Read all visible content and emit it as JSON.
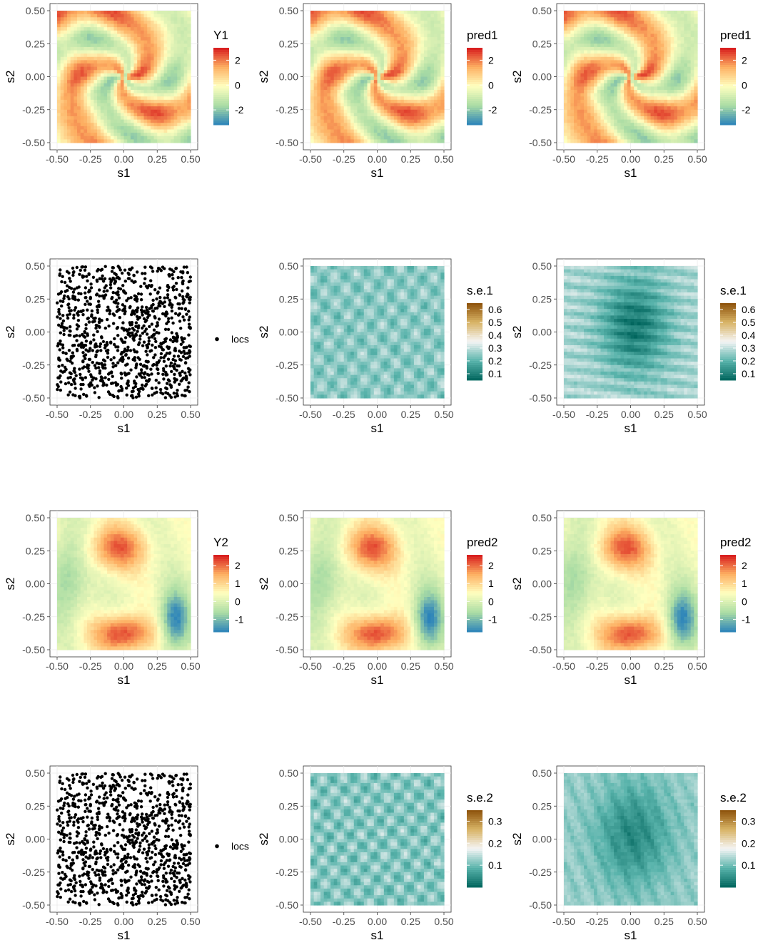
{
  "chart_data": [
    {
      "type": "heatmap",
      "row": 0,
      "col": 0,
      "palette": "spectral",
      "field": "y1",
      "xlabel": "s1",
      "ylabel": "s2",
      "x_ticks": [
        "-0.50",
        "-0.25",
        "0.00",
        "0.25",
        "0.50"
      ],
      "y_ticks": [
        "0.50",
        "0.25",
        "0.00",
        "-0.25",
        "-0.50"
      ],
      "xlim": [
        -0.5,
        0.5
      ],
      "ylim": [
        -0.5,
        0.5
      ],
      "legend": {
        "title": "Y1",
        "labels": [
          "2",
          "0",
          "-2"
        ],
        "range": [
          -3.2,
          3
        ]
      }
    },
    {
      "type": "heatmap",
      "row": 0,
      "col": 1,
      "palette": "spectral",
      "field": "y1",
      "xlabel": "s1",
      "ylabel": "s2",
      "x_ticks": [
        "-0.50",
        "-0.25",
        "0.00",
        "0.25",
        "0.50"
      ],
      "y_ticks": [
        "0.50",
        "0.25",
        "0.00",
        "-0.25",
        "-0.50"
      ],
      "xlim": [
        -0.5,
        0.5
      ],
      "ylim": [
        -0.5,
        0.5
      ],
      "legend": {
        "title": "pred1",
        "labels": [
          "2",
          "0",
          "-2"
        ],
        "range": [
          -3.2,
          3
        ]
      }
    },
    {
      "type": "heatmap",
      "row": 0,
      "col": 2,
      "palette": "spectral",
      "field": "y1",
      "xlabel": "s1",
      "ylabel": "s2",
      "x_ticks": [
        "-0.50",
        "-0.25",
        "0.00",
        "0.25",
        "0.50"
      ],
      "y_ticks": [
        "0.50",
        "0.25",
        "0.00",
        "-0.25",
        "-0.50"
      ],
      "xlim": [
        -0.5,
        0.5
      ],
      "ylim": [
        -0.5,
        0.5
      ],
      "legend": {
        "title": "pred1",
        "labels": [
          "2",
          "0",
          "-2"
        ],
        "range": [
          -3.2,
          3
        ]
      }
    },
    {
      "type": "scatter",
      "row": 1,
      "col": 0,
      "xlabel": "s1",
      "ylabel": "s2",
      "x_ticks": [
        "-0.50",
        "-0.25",
        "0.00",
        "0.25",
        "0.50"
      ],
      "y_ticks": [
        "0.50",
        "0.25",
        "0.00",
        "-0.25",
        "-0.50"
      ],
      "xlim": [
        -0.5,
        0.5
      ],
      "ylim": [
        -0.5,
        0.5
      ],
      "legend": {
        "labels": [
          "locs"
        ]
      }
    },
    {
      "type": "heatmap",
      "row": 1,
      "col": 1,
      "palette": "brbg",
      "field": "se1a",
      "xlabel": "s1",
      "ylabel": "s2",
      "x_ticks": [
        "-0.50",
        "-0.25",
        "0.00",
        "0.25",
        "0.50"
      ],
      "y_ticks": [
        "0.50",
        "0.25",
        "0.00",
        "-0.25",
        "-0.50"
      ],
      "xlim": [
        -0.5,
        0.5
      ],
      "ylim": [
        -0.5,
        0.5
      ],
      "legend": {
        "title": "s.e.1",
        "labels": [
          "0.6",
          "0.5",
          "0.4",
          "0.3",
          "0.2",
          "0.1"
        ],
        "range": [
          0.05,
          0.65
        ]
      }
    },
    {
      "type": "heatmap",
      "row": 1,
      "col": 2,
      "palette": "brbg",
      "field": "se1b",
      "xlabel": "s1",
      "ylabel": "s2",
      "x_ticks": [
        "-0.50",
        "-0.25",
        "0.00",
        "0.25",
        "0.50"
      ],
      "y_ticks": [
        "0.50",
        "0.25",
        "0.00",
        "-0.25",
        "-0.50"
      ],
      "xlim": [
        -0.5,
        0.5
      ],
      "ylim": [
        -0.5,
        0.5
      ],
      "legend": {
        "title": "s.e.1",
        "labels": [
          "0.6",
          "0.5",
          "0.4",
          "0.3",
          "0.2",
          "0.1"
        ],
        "range": [
          0.05,
          0.65
        ]
      }
    },
    {
      "type": "heatmap",
      "row": 2,
      "col": 0,
      "palette": "spectral",
      "field": "y2",
      "xlabel": "s1",
      "ylabel": "s2",
      "x_ticks": [
        "-0.50",
        "-0.25",
        "0.00",
        "0.25",
        "0.50"
      ],
      "y_ticks": [
        "0.50",
        "0.25",
        "0.00",
        "-0.25",
        "-0.50"
      ],
      "xlim": [
        -0.5,
        0.5
      ],
      "ylim": [
        -0.5,
        0.5
      ],
      "legend": {
        "title": "Y2",
        "labels": [
          "2",
          "1",
          "0",
          "-1"
        ],
        "range": [
          -1.7,
          2.6
        ]
      }
    },
    {
      "type": "heatmap",
      "row": 2,
      "col": 1,
      "palette": "spectral",
      "field": "y2",
      "xlabel": "s1",
      "ylabel": "s2",
      "x_ticks": [
        "-0.50",
        "-0.25",
        "0.00",
        "0.25",
        "0.50"
      ],
      "y_ticks": [
        "0.50",
        "0.25",
        "0.00",
        "-0.25",
        "-0.50"
      ],
      "xlim": [
        -0.5,
        0.5
      ],
      "ylim": [
        -0.5,
        0.5
      ],
      "legend": {
        "title": "pred2",
        "labels": [
          "2",
          "1",
          "0",
          "-1"
        ],
        "range": [
          -1.7,
          2.6
        ]
      }
    },
    {
      "type": "heatmap",
      "row": 2,
      "col": 2,
      "palette": "spectral",
      "field": "y2",
      "xlabel": "s1",
      "ylabel": "s2",
      "x_ticks": [
        "-0.50",
        "-0.25",
        "0.00",
        "0.25",
        "0.50"
      ],
      "y_ticks": [
        "0.50",
        "0.25",
        "0.00",
        "-0.25",
        "-0.50"
      ],
      "xlim": [
        -0.5,
        0.5
      ],
      "ylim": [
        -0.5,
        0.5
      ],
      "legend": {
        "title": "pred2",
        "labels": [
          "2",
          "1",
          "0",
          "-1"
        ],
        "range": [
          -1.7,
          2.6
        ]
      }
    },
    {
      "type": "scatter",
      "row": 3,
      "col": 0,
      "xlabel": "s1",
      "ylabel": "s2",
      "x_ticks": [
        "-0.50",
        "-0.25",
        "0.00",
        "0.25",
        "0.50"
      ],
      "y_ticks": [
        "0.50",
        "0.25",
        "0.00",
        "-0.25",
        "-0.50"
      ],
      "xlim": [
        -0.5,
        0.5
      ],
      "ylim": [
        -0.5,
        0.5
      ],
      "legend": {
        "labels": [
          "locs"
        ]
      }
    },
    {
      "type": "heatmap",
      "row": 3,
      "col": 1,
      "palette": "brbg",
      "field": "se2a",
      "xlabel": "s1",
      "ylabel": "s2",
      "x_ticks": [
        "-0.50",
        "-0.25",
        "0.00",
        "0.25",
        "0.50"
      ],
      "y_ticks": [
        "0.50",
        "0.25",
        "0.00",
        "-0.25",
        "-0.50"
      ],
      "xlim": [
        -0.5,
        0.5
      ],
      "ylim": [
        -0.5,
        0.5
      ],
      "legend": {
        "title": "s.e.2",
        "labels": [
          "0.3",
          "0.2",
          "0.1"
        ],
        "range": [
          0.0,
          0.35
        ]
      }
    },
    {
      "type": "heatmap",
      "row": 3,
      "col": 2,
      "palette": "brbg",
      "field": "se2b",
      "xlabel": "s1",
      "ylabel": "s2",
      "x_ticks": [
        "-0.50",
        "-0.25",
        "0.00",
        "0.25",
        "0.50"
      ],
      "y_ticks": [
        "0.50",
        "0.25",
        "0.00",
        "-0.25",
        "-0.50"
      ],
      "xlim": [
        -0.5,
        0.5
      ],
      "ylim": [
        -0.5,
        0.5
      ],
      "legend": {
        "title": "s.e.2",
        "labels": [
          "0.3",
          "0.2",
          "0.1"
        ],
        "range": [
          0.0,
          0.35
        ]
      }
    }
  ]
}
